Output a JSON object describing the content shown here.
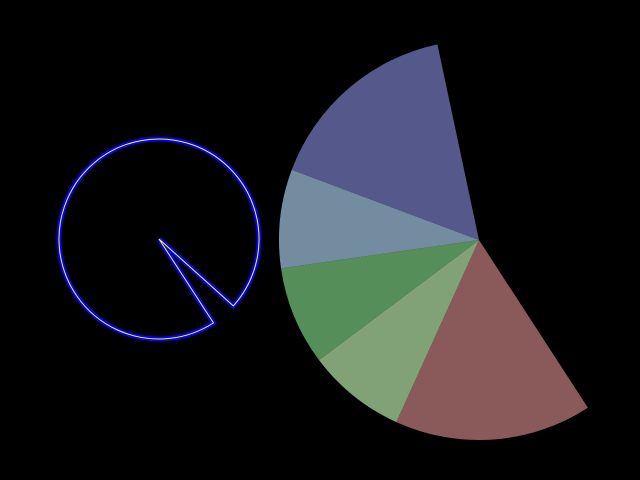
{
  "background": "#000000",
  "outline_shape": {
    "kind": "pie-outline",
    "stroke_color": "#0000ff",
    "inner_line_color": "#ffff00",
    "gap_start_deg": 42,
    "gap_end_deg": 57
  },
  "chart_data": {
    "type": "pie",
    "start_deg": 57,
    "end_deg": 258,
    "slices": [
      {
        "value": 2,
        "color": "#8a5a5a"
      },
      {
        "value": 1,
        "color": "#80a276"
      },
      {
        "value": 1,
        "color": "#568e5a"
      },
      {
        "value": 1,
        "color": "#748ca0"
      },
      {
        "value": 2,
        "color": "#55588a"
      }
    ]
  }
}
